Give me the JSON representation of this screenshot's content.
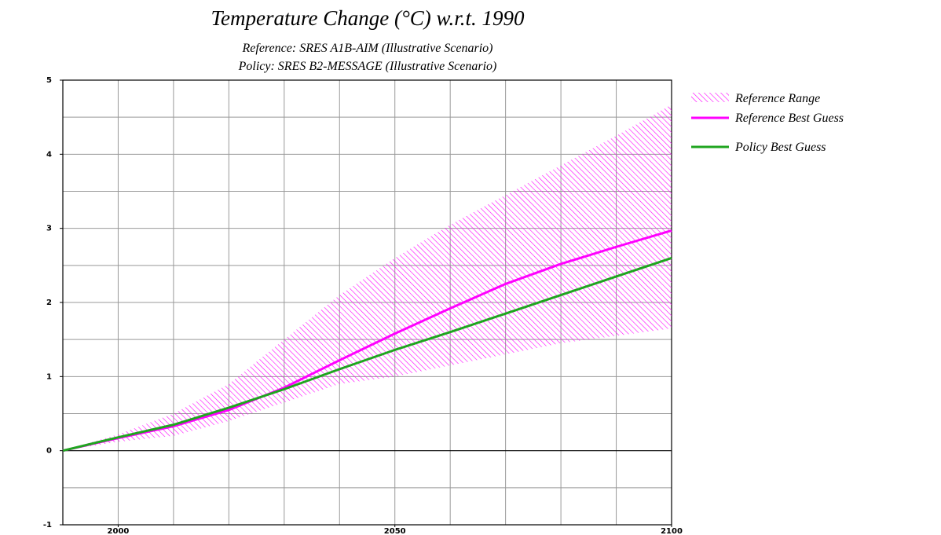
{
  "chart_data": {
    "type": "line",
    "title": "Temperature Change (°C) w.r.t. 1990",
    "subtitle": [
      "Reference: SRES A1B-AIM (Illustrative Scenario)",
      "Policy: SRES B2-MESSAGE (Illustrative Scenario)"
    ],
    "x": [
      1990,
      2000,
      2010,
      2020,
      2030,
      2040,
      2050,
      2060,
      2070,
      2080,
      2090,
      2100
    ],
    "series": [
      {
        "name": "Reference Range",
        "color": "#ff00ff",
        "fill": "hatch",
        "upper": [
          0,
          0.22,
          0.5,
          0.9,
          1.5,
          2.1,
          2.6,
          3.05,
          3.45,
          3.85,
          4.25,
          4.67
        ],
        "lower": [
          0,
          0.12,
          0.2,
          0.4,
          0.65,
          0.9,
          1.0,
          1.15,
          1.3,
          1.45,
          1.55,
          1.65
        ]
      },
      {
        "name": "Reference Best Guess",
        "color": "#ff00ff",
        "values": [
          0,
          0.17,
          0.33,
          0.55,
          0.85,
          1.22,
          1.58,
          1.92,
          2.25,
          2.52,
          2.75,
          2.97
        ]
      },
      {
        "name": "Policy Best Guess",
        "color": "#1fa51f",
        "values": [
          0,
          0.18,
          0.35,
          0.58,
          0.83,
          1.1,
          1.36,
          1.6,
          1.85,
          2.1,
          2.35,
          2.6
        ]
      }
    ],
    "xlim": [
      1990,
      2100
    ],
    "xticks": [
      2000,
      2050,
      2100
    ],
    "xgrid": [
      2000,
      2010,
      2020,
      2030,
      2040,
      2050,
      2060,
      2070,
      2080,
      2090
    ],
    "ylim": [
      -1,
      5
    ],
    "yticks": [
      -1,
      0,
      1,
      2,
      3,
      4,
      5
    ],
    "ygrid": [
      -0.5,
      0.5,
      1,
      1.5,
      2,
      2.5,
      3,
      3.5,
      4,
      4.5
    ],
    "legend": "right"
  }
}
